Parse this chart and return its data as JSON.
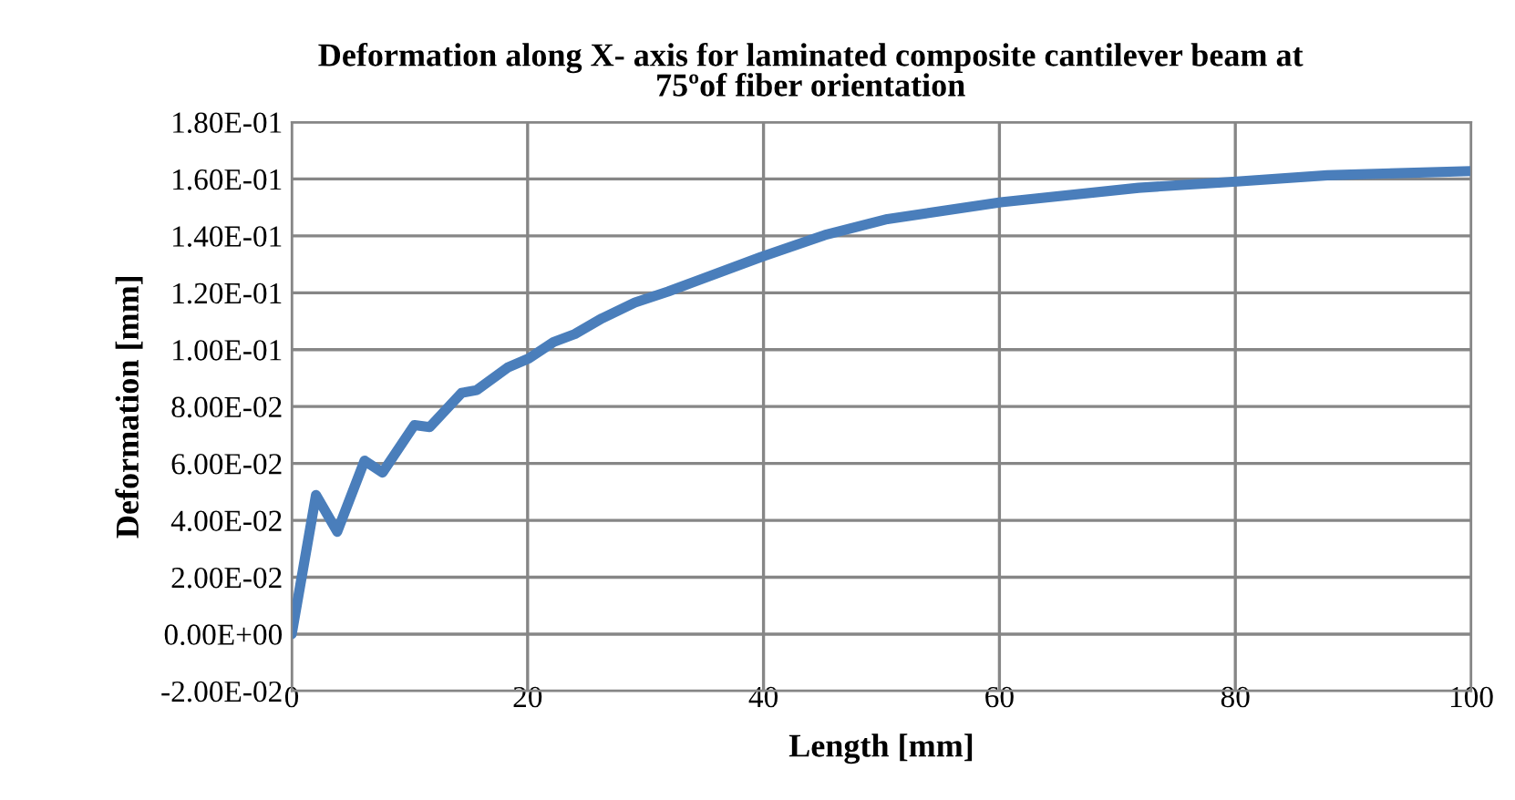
{
  "chart_data": {
    "type": "line",
    "title": "Deformation along X- axis for laminated composite cantilever beam at\n75ºof fiber orientation",
    "xlabel": "Length [mm]",
    "ylabel": "Deformation [mm]",
    "series": [
      {
        "color": "#4a7ebb",
        "x": [
          0,
          2.06,
          3.86,
          6.18,
          7.7,
          10.4,
          11.7,
          14.4,
          15.7,
          18.3,
          20.1,
          22.2,
          24,
          26.3,
          29.1,
          31.9,
          39.8,
          45.2,
          50.5,
          60.1,
          71.8,
          80.1,
          87.8,
          100
        ],
        "values": [
          0,
          0.0489,
          0.036,
          0.061,
          0.0568,
          0.0735,
          0.0728,
          0.0848,
          0.0858,
          0.0937,
          0.0969,
          0.1027,
          0.1055,
          0.111,
          0.1166,
          0.1204,
          0.1326,
          0.1403,
          0.1459,
          0.1518,
          0.1569,
          0.1591,
          0.1613,
          0.1628
        ]
      }
    ],
    "xlim": [
      0,
      100
    ],
    "xticks": [
      0,
      20,
      40,
      60,
      80,
      100
    ],
    "ylim": [
      -0.02,
      0.18
    ],
    "yticks": [
      {
        "value": -0.02,
        "label": "-2.00E-02"
      },
      {
        "value": 0,
        "label": "0.00E+00"
      },
      {
        "value": 0.02,
        "label": "2.00E-02"
      },
      {
        "value": 0.04,
        "label": "4.00E-02"
      },
      {
        "value": 0.06,
        "label": "6.00E-02"
      },
      {
        "value": 0.08,
        "label": "8.00E-02"
      },
      {
        "value": 0.1,
        "label": "1.00E-01"
      },
      {
        "value": 0.12,
        "label": "1.20E-01"
      },
      {
        "value": 0.14,
        "label": "1.40E-01"
      },
      {
        "value": 0.16,
        "label": "1.60E-01"
      },
      {
        "value": 0.18,
        "label": "1.80E-01"
      }
    ],
    "grid": true,
    "legend": false,
    "marker": "none",
    "line_style": "solid"
  }
}
